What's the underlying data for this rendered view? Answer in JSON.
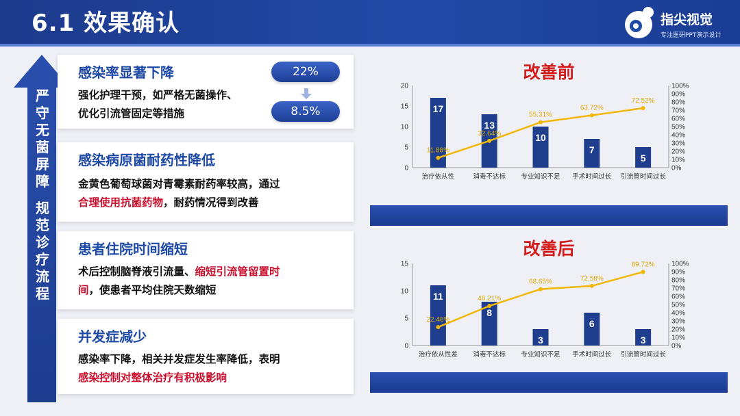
{
  "header": {
    "title": "6.1  效果确认"
  },
  "brand": {
    "name": "指尖视觉",
    "subtitle": "专注医研PPT演示设计"
  },
  "colors": {
    "primary": "#1e4aa6",
    "accent": "#c8102e",
    "bar": "#1f3f8e",
    "line": "#f2b705",
    "chart_title": "#d21c1c"
  },
  "arrow_label": {
    "part1": [
      "严",
      "守",
      "无",
      "菌",
      "屏",
      "障"
    ],
    "part2": [
      "规",
      "范",
      "诊",
      "疗",
      "流",
      "程"
    ]
  },
  "cards": [
    {
      "title": "感染率显著下降",
      "text1": "强化护理干预，如严格无菌操作、",
      "text2": "优化引流管固定等措施",
      "badge_before": "22%",
      "badge_after": "8.5%"
    },
    {
      "title": "感染病原菌耐药性降低",
      "text1": "金黄色葡萄球菌对青霉素耐药率较高，通过",
      "text2_red": "合理使用抗菌药物",
      "text2_rest": "，耐药情况得到改善"
    },
    {
      "title": "患者住院时间缩短",
      "text1_plain": "术后控制脑脊液引流量、",
      "text1_red": "缩短引流管留置时",
      "text2_red": "间",
      "text2_rest": "，使患者平均住院天数缩短"
    },
    {
      "title": "并发症减少",
      "text1": "感染率下降，相关并发症发生率降低，表明",
      "text2_red": "感染控制对整体治疗有积极影响"
    }
  ],
  "chart_data": [
    {
      "type": "bar",
      "title": "改善前",
      "categories": [
        "治疗依从性",
        "消毒不达标",
        "专业知识不足",
        "手术时间过长",
        "引流管时间过长"
      ],
      "series": [
        {
          "values": [
            17,
            13,
            10,
            7,
            5
          ]
        },
        {
          "type": "line",
          "axis": "right",
          "values": [
            11.88,
            32.64,
            55.31,
            63.72,
            72.52
          ],
          "labels": [
            "11.88%",
            "32.64%",
            "55.31%",
            "63.72%",
            "72.52%"
          ]
        }
      ],
      "ylim": [
        0,
        20
      ],
      "yticks": [
        "0",
        "5",
        "10",
        "15",
        "20"
      ],
      "y2lim": [
        0,
        100
      ],
      "y2ticks": [
        "0%",
        "10%",
        "20%",
        "30%",
        "40%",
        "50%",
        "60%",
        "70%",
        "80%",
        "90%",
        "100%"
      ],
      "grid": false
    },
    {
      "type": "bar",
      "title": "改善后",
      "categories": [
        "治疗依从性差",
        "消毒不达标",
        "专业知识不足",
        "手术时间过长",
        "引流管时间过长"
      ],
      "series": [
        {
          "values": [
            11,
            8,
            3,
            6,
            3
          ]
        },
        {
          "type": "line",
          "axis": "right",
          "values": [
            22.46,
            48.21,
            68.65,
            72.58,
            89.72
          ],
          "labels": [
            "22.46%",
            "48.21%",
            "68.65%",
            "72.58%",
            "89.72%"
          ]
        }
      ],
      "ylim": [
        0,
        15
      ],
      "yticks": [
        "0",
        "5",
        "10",
        "15"
      ],
      "y2lim": [
        0,
        100
      ],
      "y2ticks": [
        "0%",
        "10%",
        "20%",
        "30%",
        "40%",
        "50%",
        "60%",
        "70%",
        "80%",
        "90%",
        "100%"
      ],
      "grid": false
    }
  ]
}
